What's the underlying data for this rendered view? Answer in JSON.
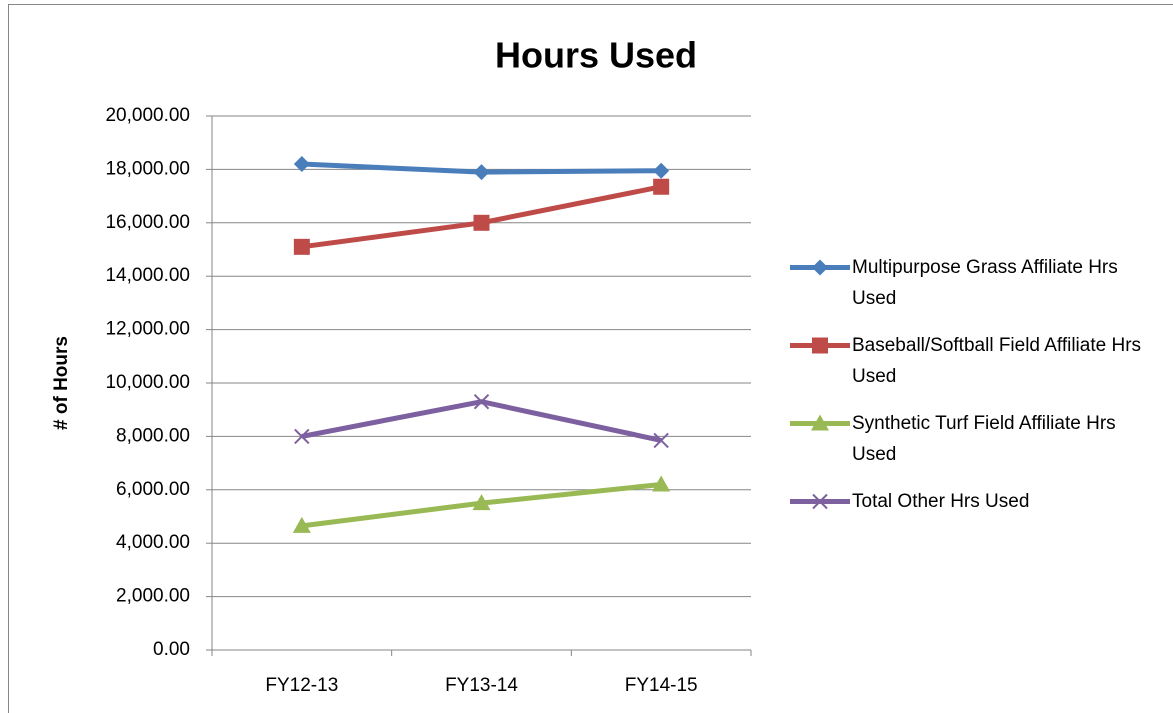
{
  "chart_data": {
    "type": "line",
    "title": "Hours Used",
    "y_label": "# of Hours",
    "categories": [
      "FY12-13",
      "FY13-14",
      "FY14-15"
    ],
    "series": [
      {
        "name": "Multipurpose Grass Affiliate Hrs Used",
        "color": "#4a7ebb",
        "marker": "diamond",
        "values": [
          18200,
          17900,
          17950
        ]
      },
      {
        "name": "Baseball/Softball Field Affiliate Hrs Used",
        "color": "#be4b48",
        "marker": "square",
        "values": [
          15100,
          16000,
          17350
        ]
      },
      {
        "name": "Synthetic Turf Field Affiliate Hrs Used",
        "color": "#98b954",
        "marker": "triangle",
        "values": [
          4650,
          5500,
          6200
        ]
      },
      {
        "name": "Total Other Hrs Used",
        "color": "#7d60a0",
        "marker": "x",
        "values": [
          8000,
          9300,
          7850
        ]
      }
    ],
    "ylim": [
      0,
      20000
    ],
    "yticks": [
      {
        "value": 0,
        "label": "0.00"
      },
      {
        "value": 2000,
        "label": "2,000.00"
      },
      {
        "value": 4000,
        "label": "4,000.00"
      },
      {
        "value": 6000,
        "label": "6,000.00"
      },
      {
        "value": 8000,
        "label": "8,000.00"
      },
      {
        "value": 10000,
        "label": "10,000.00"
      },
      {
        "value": 12000,
        "label": "12,000.00"
      },
      {
        "value": 14000,
        "label": "14,000.00"
      },
      {
        "value": 16000,
        "label": "16,000.00"
      },
      {
        "value": 18000,
        "label": "18,000.00"
      },
      {
        "value": 20000,
        "label": "20,000.00"
      }
    ],
    "grid": true,
    "legend": "right"
  }
}
